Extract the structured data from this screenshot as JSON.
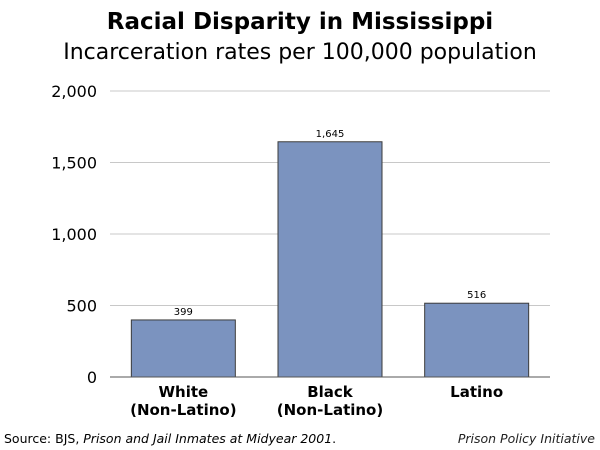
{
  "title": "Racial Disparity in Mississippi",
  "subtitle": "Incarceration rates per 100,000 population",
  "source": {
    "prefix": "Source: BJS, ",
    "publication": "Prison and Jail Inmates at Midyear 2001",
    "suffix": "."
  },
  "credit": "Prison Policy Initiative",
  "colors": {
    "bar": "#7b93bf",
    "bar_stroke": "#3b3b3b",
    "grid": "#c8c8c8",
    "axis": "#555555"
  },
  "chart_data": {
    "type": "bar",
    "categories": [
      [
        "White",
        "(Non-Latino)"
      ],
      [
        "Black",
        "(Non-Latino)"
      ],
      [
        "Latino"
      ]
    ],
    "values": [
      399,
      1645,
      516
    ],
    "data_labels": [
      "399",
      "1,645",
      "516"
    ],
    "ylim": [
      0,
      2000
    ],
    "yticks": [
      0,
      500,
      1000,
      1500,
      2000
    ],
    "ytick_labels": [
      "0",
      "500",
      "1,000",
      "1,500",
      "2,000"
    ],
    "grid": true,
    "xlabel": "",
    "ylabel": ""
  }
}
